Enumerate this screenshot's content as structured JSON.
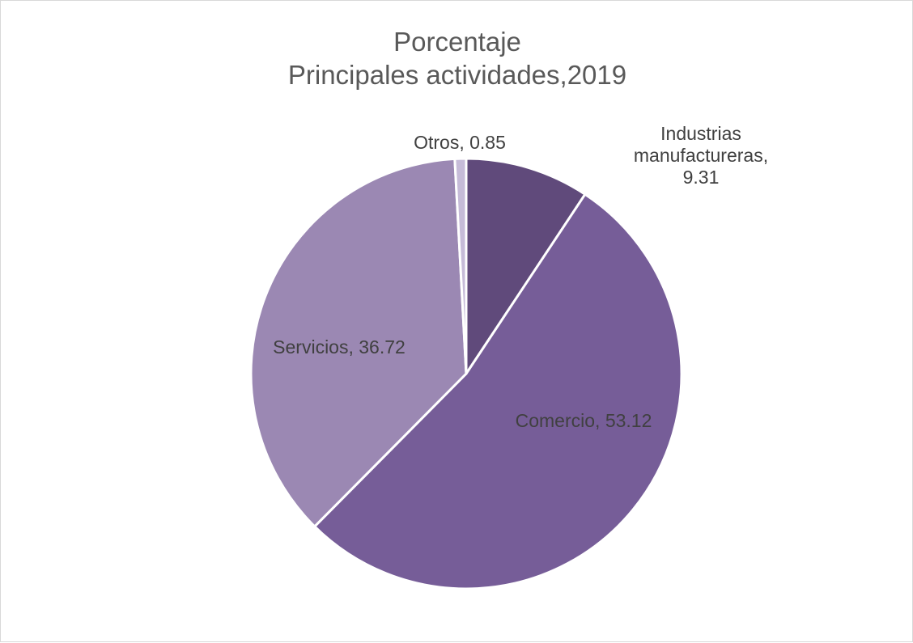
{
  "chart_data": {
    "type": "pie",
    "title": [
      "Porcentaje",
      "Principales actividades,2019"
    ],
    "slices": [
      {
        "name": "Industrias manufactureras",
        "value": 9.31,
        "color": "#604a7b",
        "label_lines": [
          "Industrias",
          "manufactureras,",
          "9.31"
        ]
      },
      {
        "name": "Comercio",
        "value": 53.12,
        "color": "#765d98",
        "label_lines": [
          "Comercio, 53.12"
        ]
      },
      {
        "name": "Servicios",
        "value": 36.72,
        "color": "#9b88b3",
        "label_lines": [
          "Servicios, 36.72"
        ]
      },
      {
        "name": "Otros",
        "value": 0.85,
        "color": "#c6bbd8",
        "label_lines": [
          "Otros, 0.85"
        ]
      }
    ],
    "start_angle_deg": 0,
    "direction": "clockwise",
    "legend": "none"
  }
}
